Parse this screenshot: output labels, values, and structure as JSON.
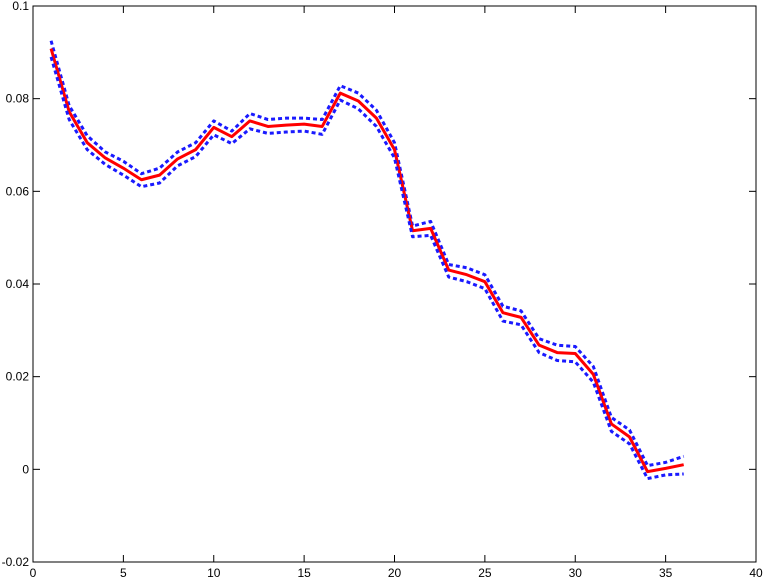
{
  "chart_data": {
    "type": "line",
    "title": "",
    "xlabel": "",
    "ylabel": "",
    "xlim": [
      0,
      40
    ],
    "ylim": [
      -0.02,
      0.1
    ],
    "xticks": [
      0,
      5,
      10,
      15,
      20,
      25,
      30,
      35,
      40
    ],
    "yticks": [
      -0.02,
      0,
      0.02,
      0.04,
      0.06,
      0.08,
      0.1
    ],
    "xtick_labels": [
      "0",
      "5",
      "10",
      "15",
      "20",
      "25",
      "30",
      "35",
      "40"
    ],
    "ytick_labels": [
      "-0.02",
      "0",
      "0.02",
      "0.04",
      "0.06",
      "0.08",
      "0.1"
    ],
    "grid": false,
    "x": [
      1,
      2,
      3,
      4,
      5,
      6,
      7,
      8,
      9,
      10,
      11,
      12,
      13,
      14,
      15,
      16,
      17,
      18,
      19,
      20,
      21,
      22,
      23,
      24,
      25,
      26,
      27,
      28,
      29,
      30,
      31,
      32,
      33,
      34,
      35,
      36
    ],
    "series": [
      {
        "role": "upper",
        "color": "#1a1aff",
        "style": "dotted",
        "values": [
          0.0925,
          0.0785,
          0.072,
          0.0685,
          0.0665,
          0.0638,
          0.065,
          0.0685,
          0.0705,
          0.0752,
          0.073,
          0.0768,
          0.0755,
          0.0758,
          0.0758,
          0.0755,
          0.0828,
          0.0812,
          0.0775,
          0.0705,
          0.0525,
          0.0535,
          0.0442,
          0.0435,
          0.042,
          0.0352,
          0.0342,
          0.0282,
          0.0268,
          0.0265,
          0.0222,
          0.0112,
          0.0085,
          0.0008,
          0.0015,
          0.0028
        ]
      },
      {
        "role": "center",
        "color": "#ff0000",
        "style": "solid",
        "values": [
          0.0908,
          0.0772,
          0.0705,
          0.0672,
          0.065,
          0.0625,
          0.0635,
          0.067,
          0.069,
          0.0738,
          0.0718,
          0.0752,
          0.074,
          0.0743,
          0.0745,
          0.074,
          0.0812,
          0.0795,
          0.0758,
          0.069,
          0.0515,
          0.052,
          0.043,
          0.042,
          0.0405,
          0.0338,
          0.0328,
          0.0268,
          0.0252,
          0.025,
          0.0205,
          0.0098,
          0.007,
          -0.0005,
          0.0002,
          0.001
        ]
      },
      {
        "role": "lower",
        "color": "#1a1aff",
        "style": "dotted",
        "values": [
          0.089,
          0.0755,
          0.069,
          0.0658,
          0.0635,
          0.061,
          0.0618,
          0.0655,
          0.0675,
          0.0722,
          0.0703,
          0.0735,
          0.0725,
          0.0728,
          0.073,
          0.0723,
          0.0797,
          0.0778,
          0.074,
          0.0672,
          0.0502,
          0.0505,
          0.0415,
          0.0405,
          0.039,
          0.032,
          0.0312,
          0.0252,
          0.0235,
          0.0232,
          0.0188,
          0.0082,
          0.0055,
          -0.002,
          -0.0012,
          -0.001
        ]
      }
    ]
  }
}
